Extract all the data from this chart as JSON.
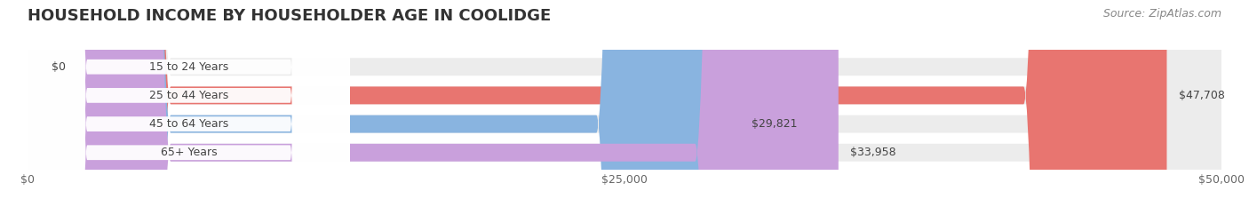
{
  "title": "HOUSEHOLD INCOME BY HOUSEHOLDER AGE IN COOLIDGE",
  "source": "Source: ZipAtlas.com",
  "categories": [
    "15 to 24 Years",
    "25 to 44 Years",
    "45 to 64 Years",
    "65+ Years"
  ],
  "values": [
    0,
    47708,
    29821,
    33958
  ],
  "bar_colors": [
    "#f2c9a0",
    "#e87570",
    "#89b4e0",
    "#c9a0dc"
  ],
  "bar_bg_color": "#ececec",
  "background_color": "#ffffff",
  "xlim": [
    0,
    50000
  ],
  "xticks": [
    0,
    25000,
    50000
  ],
  "xtick_labels": [
    "$0",
    "$25,000",
    "$50,000"
  ],
  "value_labels": [
    "$0",
    "$47,708",
    "$29,821",
    "$33,958"
  ],
  "title_fontsize": 13,
  "label_fontsize": 9,
  "tick_fontsize": 9,
  "source_fontsize": 9
}
